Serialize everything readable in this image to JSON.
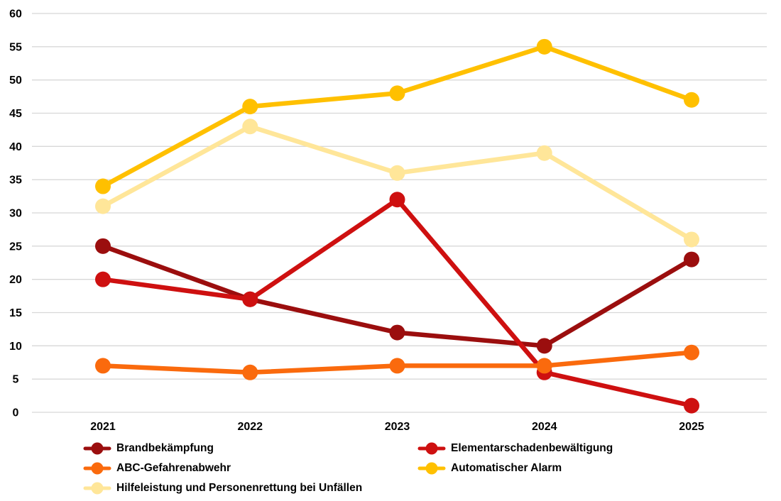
{
  "chart_data": {
    "type": "line",
    "categories": [
      "2021",
      "2022",
      "2023",
      "2024",
      "2025"
    ],
    "series": [
      {
        "name": "Brandbekämpfung",
        "color": "#9B0E0E",
        "values": [
          25,
          17,
          12,
          10,
          23
        ]
      },
      {
        "name": "Elementarschadenbewältigung",
        "color": "#CE1010",
        "values": [
          20,
          17,
          32,
          6,
          1
        ]
      },
      {
        "name": "ABC-Gefahrenabwehr",
        "color": "#FA6A0D",
        "values": [
          7,
          6,
          7,
          7,
          9
        ]
      },
      {
        "name": "Automatischer Alarm",
        "color": "#FFC000",
        "values": [
          34,
          46,
          48,
          55,
          47
        ]
      },
      {
        "name": "Hilfeleistung und Personenrettung bei Unfällen",
        "color": "#FFE699",
        "values": [
          31,
          43,
          36,
          39,
          26
        ]
      }
    ],
    "title": "",
    "xlabel": "",
    "ylabel": "",
    "yaxis": {
      "min": 0,
      "max": 60,
      "step": 5,
      "tick_labels": [
        "0",
        "5",
        "10",
        "15",
        "20",
        "25",
        "30",
        "35",
        "40",
        "45",
        "50",
        "55",
        "60"
      ]
    },
    "grid": true,
    "gridline_color": "#D8D8D8",
    "background": "#FFFFFF",
    "text_color": "#000000",
    "legend_position": "bottom",
    "legend_columns": 2
  }
}
